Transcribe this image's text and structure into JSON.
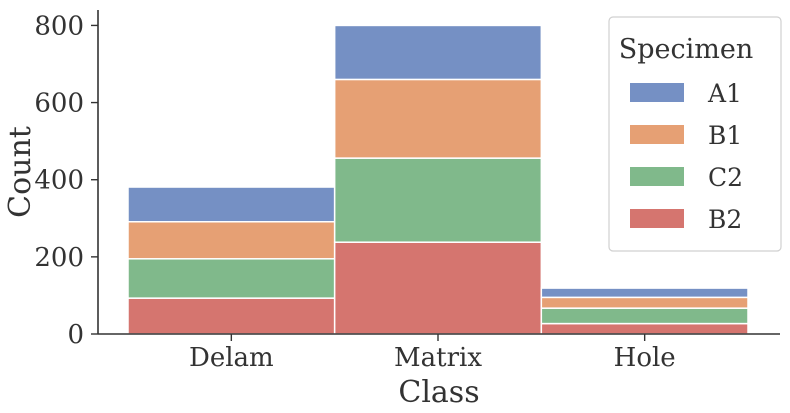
{
  "chart_data": {
    "type": "bar",
    "stacked": true,
    "xlabel": "Class",
    "ylabel": "Count",
    "categories": [
      "Delam",
      "Matrix",
      "Hole"
    ],
    "yticks": [
      "0",
      "200",
      "400",
      "600",
      "800"
    ],
    "ylim": [
      0,
      840
    ],
    "legend": {
      "title": "Specimen",
      "placement": "top-right",
      "entries": [
        "A1",
        "B1",
        "C2",
        "B2"
      ]
    },
    "series": [
      {
        "name": "B2",
        "color": "#d5756f",
        "values": [
          93,
          238,
          27
        ]
      },
      {
        "name": "C2",
        "color": "#80b98b",
        "values": [
          102,
          218,
          40
        ]
      },
      {
        "name": "B1",
        "color": "#e6a074",
        "values": [
          96,
          204,
          28
        ]
      },
      {
        "name": "A1",
        "color": "#7590c4",
        "values": [
          90,
          140,
          24
        ]
      }
    ],
    "grid": false
  }
}
